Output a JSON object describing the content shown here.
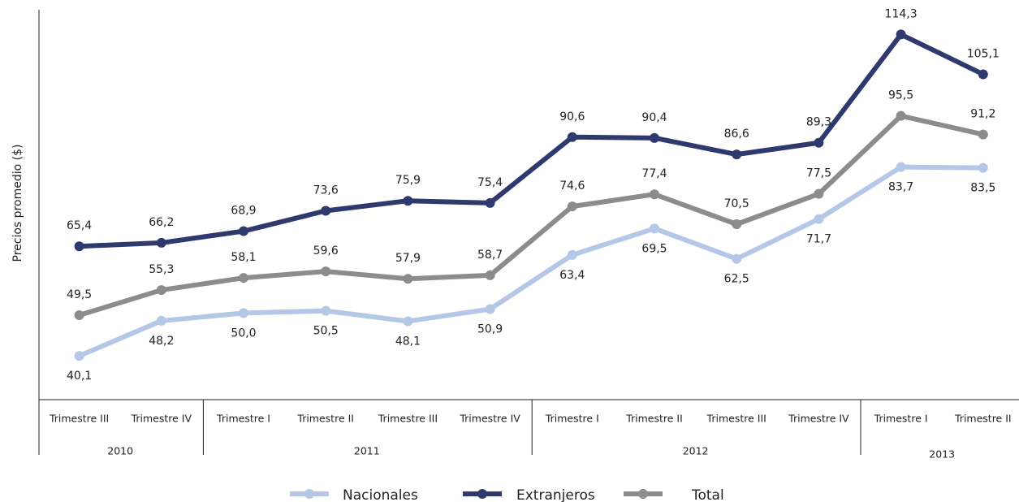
{
  "chart_data": {
    "type": "line",
    "y_label": "Precios promedio ($)",
    "categories": [
      "Trimestre III",
      "Trimestre IV",
      "Trimestre I",
      "Trimestre II",
      "Trimestre III",
      "Trimestre IV",
      "Trimestre I",
      "Trimestre II",
      "Trimestre III",
      "Trimestre IV",
      "Trimestre I",
      "Trimestre II"
    ],
    "groups": [
      {
        "label": "2010",
        "count": 2
      },
      {
        "label": "2011",
        "count": 4
      },
      {
        "label": "2012",
        "count": 4
      },
      {
        "label": "2013",
        "count": 2
      }
    ],
    "series": [
      {
        "name": "Nacionales",
        "color": "#b4c7e7",
        "values": [
          40.1,
          48.2,
          50.0,
          50.5,
          48.1,
          50.9,
          63.4,
          69.5,
          62.5,
          71.7,
          83.7,
          83.5
        ],
        "value_labels": [
          "40,1",
          "48,2",
          "50,0",
          "50,5",
          "48,1",
          "50,9",
          "63,4",
          "69,5",
          "62,5",
          "71,7",
          "83,7",
          "83,5"
        ]
      },
      {
        "name": "Extranjeros",
        "color": "#2e3a6e",
        "values": [
          65.4,
          66.2,
          68.9,
          73.6,
          75.9,
          75.4,
          90.6,
          90.4,
          86.6,
          89.3,
          114.3,
          105.1
        ],
        "value_labels": [
          "65,4",
          "66,2",
          "68,9",
          "73,6",
          "75,9",
          "75,4",
          "90,6",
          "90,4",
          "86,6",
          "89,3",
          "114,3",
          "105,1"
        ]
      },
      {
        "name": "Total",
        "color": "#8c8c8c",
        "values": [
          49.5,
          55.3,
          58.1,
          59.6,
          57.9,
          58.7,
          74.6,
          77.4,
          70.5,
          77.5,
          95.5,
          91.2
        ],
        "value_labels": [
          "49,5",
          "55,3",
          "58,1",
          "59,6",
          "57,9",
          "58,7",
          "74,6",
          "77,4",
          "70,5",
          "77,5",
          "95,5",
          "91,2"
        ]
      }
    ],
    "ylim": [
      30,
      120
    ],
    "legend": "bottom"
  }
}
